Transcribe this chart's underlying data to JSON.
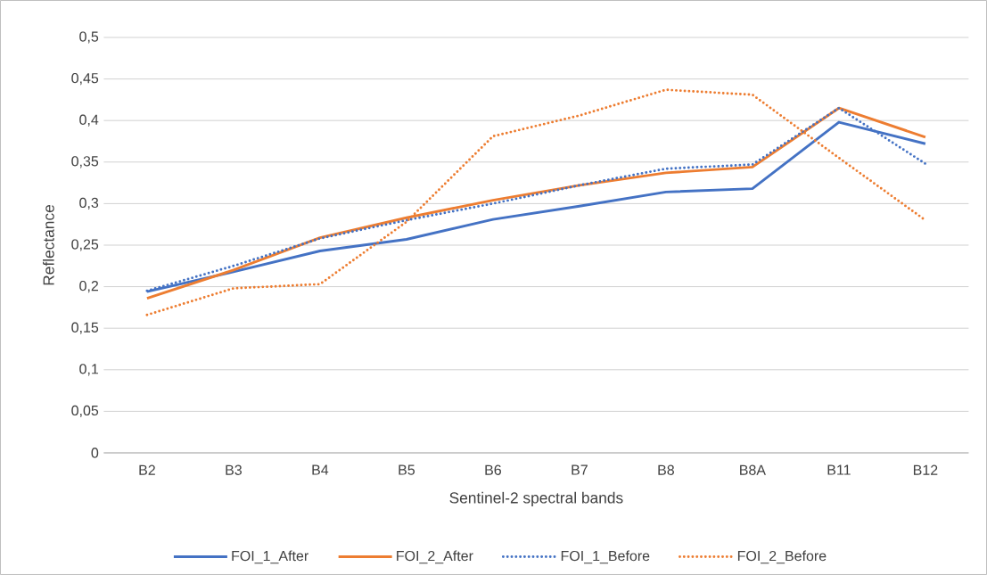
{
  "chart_data": {
    "type": "line",
    "xlabel": "Sentinel-2 spectral bands",
    "ylabel": "Reflectance",
    "categories": [
      "B2",
      "B3",
      "B4",
      "B5",
      "B6",
      "B7",
      "B8",
      "B8A",
      "B11",
      "B12"
    ],
    "series": [
      {
        "name": "FOI_1_Before",
        "color": "#4472c4",
        "line_style": "dotted",
        "values": [
          0.195,
          0.225,
          0.258,
          0.28,
          0.3,
          0.322,
          0.342,
          0.347,
          0.415,
          0.348
        ]
      },
      {
        "name": "FOI_1_After",
        "color": "#4472c4",
        "line_style": "solid",
        "values": [
          0.194,
          0.218,
          0.243,
          0.257,
          0.281,
          0.297,
          0.314,
          0.318,
          0.398,
          0.372
        ]
      },
      {
        "name": "FOI_2_Before",
        "color": "#ed7d31",
        "line_style": "dotted",
        "values": [
          0.166,
          0.198,
          0.203,
          0.278,
          0.381,
          0.406,
          0.437,
          0.431,
          0.355,
          0.28
        ]
      },
      {
        "name": "FOI_2_After",
        "color": "#ed7d31",
        "line_style": "solid",
        "values": [
          0.186,
          0.22,
          0.259,
          0.283,
          0.304,
          0.322,
          0.337,
          0.344,
          0.415,
          0.38
        ]
      }
    ],
    "ylim": [
      0,
      0.5
    ],
    "yticks": [
      0,
      {
        "value": 0.05,
        "label": "0,05"
      },
      {
        "value": 0.1,
        "label": "0,1"
      },
      {
        "value": 0.15,
        "label": "0,15"
      },
      {
        "value": 0.2,
        "label": "0,2"
      },
      {
        "value": 0.25,
        "label": "0,25"
      },
      {
        "value": 0.3,
        "label": "0,3"
      },
      {
        "value": 0.35,
        "label": "0,35"
      },
      {
        "value": 0.4,
        "label": "0,4"
      },
      {
        "value": 0.45,
        "label": "0,45"
      },
      {
        "value": 0.5,
        "label": "0,5"
      }
    ],
    "grid": "y",
    "legend": "bottom",
    "marker": "none"
  }
}
